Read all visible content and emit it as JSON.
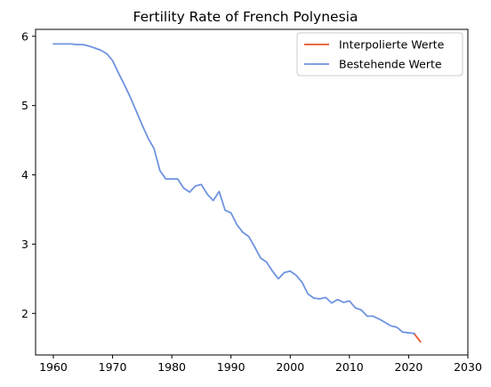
{
  "chart_data": {
    "type": "line",
    "title": "Fertility Rate of French Polynesia",
    "xlabel": "",
    "ylabel": "",
    "xlim": [
      1957,
      2030
    ],
    "ylim": [
      1.4,
      6.1
    ],
    "xticks": [
      1960,
      1970,
      1980,
      1990,
      2000,
      2010,
      2020,
      2030
    ],
    "yticks": [
      2,
      3,
      4,
      5,
      6
    ],
    "grid": false,
    "legend_placement": "top-right",
    "series": [
      {
        "name": "Interpolierte Werte",
        "color": "#e8542a",
        "x": [
          2021,
          2022
        ],
        "y": [
          1.7,
          1.59
        ]
      },
      {
        "name": "Bestehende Werte",
        "color": "#6f93e0",
        "x": [
          1960,
          1961,
          1962,
          1963,
          1964,
          1965,
          1966,
          1967,
          1968,
          1969,
          1970,
          1971,
          1972,
          1973,
          1974,
          1975,
          1976,
          1977,
          1978,
          1979,
          1980,
          1981,
          1982,
          1983,
          1984,
          1985,
          1986,
          1987,
          1988,
          1989,
          1990,
          1991,
          1992,
          1993,
          1994,
          1995,
          1996,
          1997,
          1998,
          1999,
          2000,
          2001,
          2002,
          2003,
          2004,
          2005,
          2006,
          2007,
          2008,
          2009,
          2010,
          2011,
          2012,
          2013,
          2014,
          2015,
          2016,
          2017,
          2018,
          2019,
          2020,
          2021
        ],
        "y": [
          5.89,
          5.89,
          5.89,
          5.89,
          5.88,
          5.88,
          5.86,
          5.83,
          5.8,
          5.75,
          5.65,
          5.47,
          5.3,
          5.12,
          4.92,
          4.72,
          4.53,
          4.38,
          4.06,
          3.94,
          3.94,
          3.94,
          3.81,
          3.75,
          3.84,
          3.86,
          3.72,
          3.63,
          3.76,
          3.49,
          3.45,
          3.28,
          3.17,
          3.11,
          2.96,
          2.8,
          2.74,
          2.61,
          2.5,
          2.59,
          2.61,
          2.55,
          2.45,
          2.28,
          2.22,
          2.21,
          2.23,
          2.15,
          2.2,
          2.16,
          2.18,
          2.08,
          2.05,
          1.96,
          1.96,
          1.92,
          1.87,
          1.82,
          1.8,
          1.73,
          1.72,
          1.71
        ]
      }
    ]
  }
}
